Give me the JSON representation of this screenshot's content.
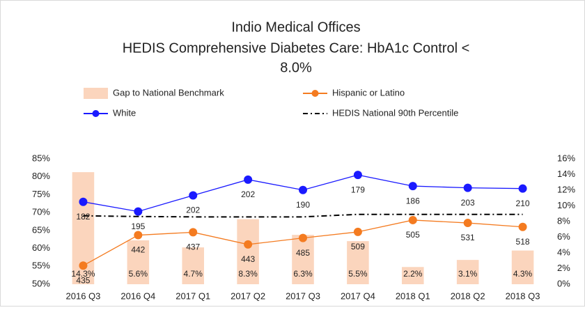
{
  "chart_data": {
    "type": "combo",
    "title": [
      "Indio Medical Offices",
      "HEDIS Comprehensive Diabetes Care: HbA1c Control <",
      "8.0%"
    ],
    "categories": [
      "2016 Q3",
      "2016 Q4",
      "2017 Q1",
      "2017 Q2",
      "2017 Q3",
      "2017 Q4",
      "2018 Q1",
      "2018 Q2",
      "2018 Q3"
    ],
    "ylim": [
      50,
      85
    ],
    "yticks": [
      {
        "value": 50,
        "label": "50%"
      },
      {
        "value": 55,
        "label": "55%"
      },
      {
        "value": 60,
        "label": "60%"
      },
      {
        "value": 65,
        "label": "65%"
      },
      {
        "value": 70,
        "label": "70%"
      },
      {
        "value": 75,
        "label": "75%"
      },
      {
        "value": 80,
        "label": "80%"
      },
      {
        "value": 85,
        "label": "85%"
      }
    ],
    "y2lim": [
      0,
      16
    ],
    "y2ticks": [
      {
        "value": 0,
        "label": "0%"
      },
      {
        "value": 2,
        "label": "2%"
      },
      {
        "value": 4,
        "label": "4%"
      },
      {
        "value": 6,
        "label": "6%"
      },
      {
        "value": 8,
        "label": "8%"
      },
      {
        "value": 10,
        "label": "10%"
      },
      {
        "value": 12,
        "label": "12%"
      },
      {
        "value": 14,
        "label": "14%"
      },
      {
        "value": 16,
        "label": "16%"
      }
    ],
    "grid": false,
    "series": [
      {
        "name": "Gap to National Benchmark",
        "kind": "bar",
        "axis": "y2",
        "color": "#fbd5bd",
        "values": [
          14.3,
          5.6,
          4.7,
          8.3,
          6.3,
          5.5,
          2.2,
          3.1,
          4.3
        ],
        "value_labels": [
          "14.3%",
          "5.6%",
          "4.7%",
          "8.3%",
          "6.3%",
          "5.5%",
          "2.2%",
          "3.1%",
          "4.3%"
        ]
      },
      {
        "name": "Hispanic or Latino",
        "kind": "line",
        "color": "#f47b20",
        "values": [
          55.2,
          63.7,
          64.5,
          61.1,
          62.9,
          64.6,
          67.9,
          67.1,
          66.0
        ],
        "point_labels": [
          435,
          442,
          437,
          443,
          485,
          509,
          505,
          531,
          518
        ]
      },
      {
        "name": "White",
        "kind": "line",
        "color": "#1a1aff",
        "values": [
          73.0,
          70.3,
          74.8,
          79.2,
          76.3,
          80.5,
          77.4,
          76.9,
          76.7
        ],
        "point_labels": [
          182,
          195,
          202,
          202,
          190,
          179,
          186,
          203,
          210
        ]
      },
      {
        "name": "HEDIS National 90th Percentile",
        "kind": "dashdot",
        "color": "#000000",
        "values": [
          69.1,
          68.9,
          68.8,
          68.8,
          68.8,
          69.5,
          69.5,
          69.5,
          69.5
        ]
      }
    ]
  }
}
